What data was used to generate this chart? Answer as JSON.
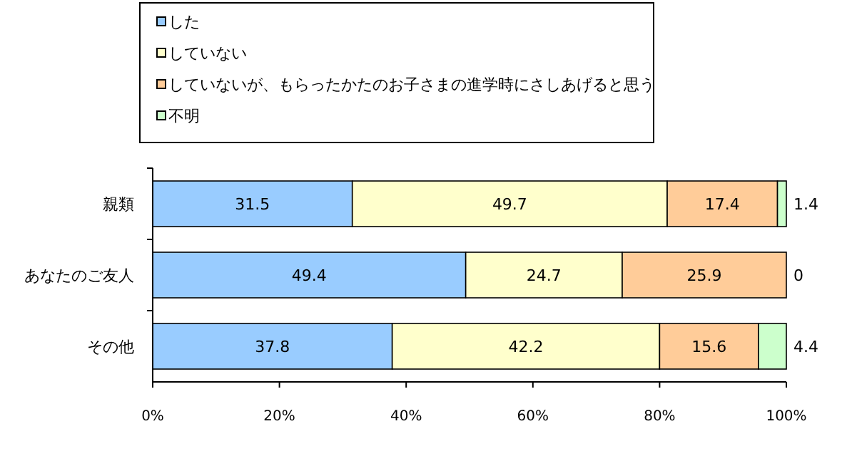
{
  "chart_data": {
    "type": "bar",
    "orientation": "horizontal",
    "stacked": true,
    "categories": [
      "親類",
      "あなたのご友人",
      "その他"
    ],
    "series": [
      {
        "name": "した",
        "color": "#99ccff",
        "values": [
          31.5,
          49.4,
          37.8
        ]
      },
      {
        "name": "していない",
        "color": "#ffffcc",
        "values": [
          49.7,
          24.7,
          42.2
        ]
      },
      {
        "name": "していないが、もらったかたのお子さまの進学時にさしあげると思う",
        "color": "#ffcc99",
        "values": [
          17.4,
          25.9,
          15.6
        ]
      },
      {
        "name": "不明",
        "color": "#ccffcc",
        "values": [
          1.4,
          0,
          4.4
        ]
      }
    ],
    "xlim": [
      0,
      100
    ],
    "xticks": [
      {
        "value": 0,
        "label": "0%"
      },
      {
        "value": 20,
        "label": "20%"
      },
      {
        "value": 40,
        "label": "40%"
      },
      {
        "value": 60,
        "label": "60%"
      },
      {
        "value": 80,
        "label": "80%"
      },
      {
        "value": 100,
        "label": "100%"
      }
    ],
    "data_labels": true,
    "legend": "top",
    "grid": false
  }
}
